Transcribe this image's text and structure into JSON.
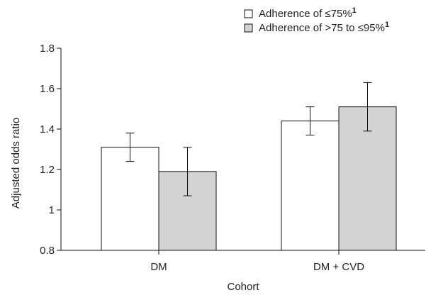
{
  "chart_data": {
    "type": "bar",
    "categories": [
      "DM",
      "DM + CVD"
    ],
    "xlabel": "Cohort",
    "ylabel": "Adjusted odds ratio",
    "ylim": [
      0.8,
      1.8
    ],
    "yticks": [
      0.8,
      1.0,
      1.2,
      1.4,
      1.6,
      1.8
    ],
    "ytick_labels": [
      "0.8",
      "1",
      "1.2",
      "1.4",
      "1.6",
      "1.8"
    ],
    "legend_placement": "top-right",
    "grid": false,
    "series": [
      {
        "legend_text": "Adherence of ≤75%",
        "legend_superscript": "1",
        "fill": "#ffffff",
        "values": [
          1.31,
          1.44
        ],
        "err_low": [
          1.24,
          1.37
        ],
        "err_high": [
          1.38,
          1.51
        ]
      },
      {
        "legend_text": "Adherence of >75 to ≤95%",
        "legend_superscript": "1",
        "fill": "#d3d3d3",
        "values": [
          1.19,
          1.51
        ],
        "err_low": [
          1.07,
          1.39
        ],
        "err_high": [
          1.31,
          1.63
        ]
      }
    ]
  }
}
